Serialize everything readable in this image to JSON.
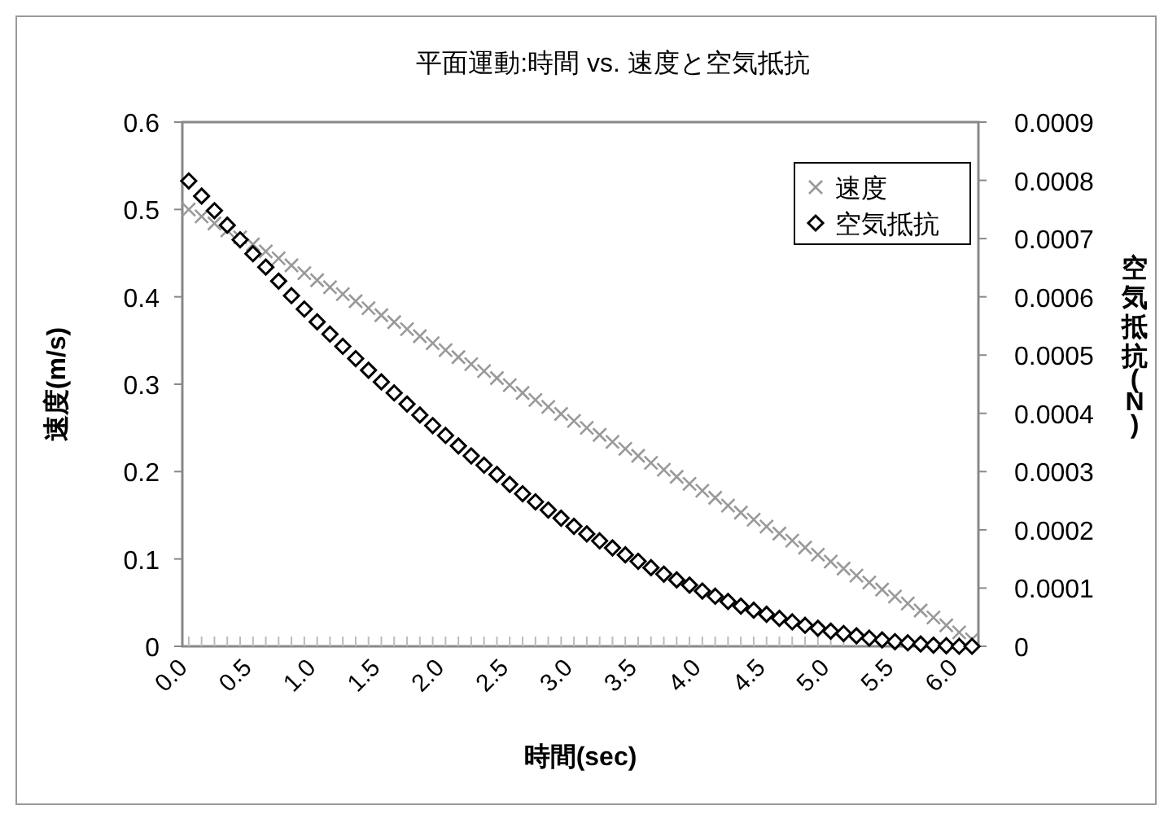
{
  "chart_data": {
    "type": "scatter",
    "title": "平面運動:時間 vs. 速度と空気抵抗",
    "xlabel": "時間(sec)",
    "ylabel": "速度(m/s)",
    "y2label": "空気抵抗(N)",
    "x": [
      0,
      0.1,
      0.2,
      0.3,
      0.4,
      0.5,
      0.6,
      0.7,
      0.8,
      0.9,
      1.0,
      1.1,
      1.2,
      1.3,
      1.4,
      1.5,
      1.6,
      1.7,
      1.8,
      1.9,
      2.0,
      2.1,
      2.2,
      2.3,
      2.4,
      2.5,
      2.6,
      2.7,
      2.8,
      2.9,
      3.0,
      3.1,
      3.2,
      3.3,
      3.4,
      3.5,
      3.6,
      3.7,
      3.8,
      3.9,
      4.0,
      4.1,
      4.2,
      4.3,
      4.4,
      4.5,
      4.6,
      4.7,
      4.8,
      4.9,
      5.0,
      5.1,
      5.2,
      5.3,
      5.4,
      5.5,
      5.6,
      5.7,
      5.8,
      5.9,
      6.0,
      6.1
    ],
    "xlim": [
      -0.05,
      6.15
    ],
    "xticks": [
      {
        "value": 0,
        "label": "0.0"
      },
      {
        "value": 0.1,
        "label": null
      },
      {
        "value": 0.2,
        "label": null
      },
      {
        "value": 0.3,
        "label": null
      },
      {
        "value": 0.4,
        "label": null
      },
      {
        "value": 0.5,
        "label": "0.5"
      },
      {
        "value": 0.6,
        "label": null
      },
      {
        "value": 0.7,
        "label": null
      },
      {
        "value": 0.8,
        "label": null
      },
      {
        "value": 0.9,
        "label": null
      },
      {
        "value": 1.0,
        "label": "1.0"
      },
      {
        "value": 1.1,
        "label": null
      },
      {
        "value": 1.2,
        "label": null
      },
      {
        "value": 1.3,
        "label": null
      },
      {
        "value": 1.4,
        "label": null
      },
      {
        "value": 1.5,
        "label": "1.5"
      },
      {
        "value": 1.6,
        "label": null
      },
      {
        "value": 1.7,
        "label": null
      },
      {
        "value": 1.8,
        "label": null
      },
      {
        "value": 1.9,
        "label": null
      },
      {
        "value": 2.0,
        "label": "2.0"
      },
      {
        "value": 2.1,
        "label": null
      },
      {
        "value": 2.2,
        "label": null
      },
      {
        "value": 2.3,
        "label": null
      },
      {
        "value": 2.4,
        "label": null
      },
      {
        "value": 2.5,
        "label": "2.5"
      },
      {
        "value": 2.6,
        "label": null
      },
      {
        "value": 2.7,
        "label": null
      },
      {
        "value": 2.8,
        "label": null
      },
      {
        "value": 2.9,
        "label": null
      },
      {
        "value": 3.0,
        "label": "3.0"
      },
      {
        "value": 3.1,
        "label": null
      },
      {
        "value": 3.2,
        "label": null
      },
      {
        "value": 3.3,
        "label": null
      },
      {
        "value": 3.4,
        "label": null
      },
      {
        "value": 3.5,
        "label": "3.5"
      },
      {
        "value": 3.6,
        "label": null
      },
      {
        "value": 3.7,
        "label": null
      },
      {
        "value": 3.8,
        "label": null
      },
      {
        "value": 3.9,
        "label": null
      },
      {
        "value": 4.0,
        "label": "4.0"
      },
      {
        "value": 4.1,
        "label": null
      },
      {
        "value": 4.2,
        "label": null
      },
      {
        "value": 4.3,
        "label": null
      },
      {
        "value": 4.4,
        "label": null
      },
      {
        "value": 4.5,
        "label": "4.5"
      },
      {
        "value": 4.6,
        "label": null
      },
      {
        "value": 4.7,
        "label": null
      },
      {
        "value": 4.8,
        "label": null
      },
      {
        "value": 4.9,
        "label": null
      },
      {
        "value": 5.0,
        "label": "5.0"
      },
      {
        "value": 5.1,
        "label": null
      },
      {
        "value": 5.2,
        "label": null
      },
      {
        "value": 5.3,
        "label": null
      },
      {
        "value": 5.4,
        "label": null
      },
      {
        "value": 5.5,
        "label": "5.5"
      },
      {
        "value": 5.6,
        "label": null
      },
      {
        "value": 5.7,
        "label": null
      },
      {
        "value": 5.8,
        "label": null
      },
      {
        "value": 5.9,
        "label": null
      },
      {
        "value": 6.0,
        "label": "6.0"
      },
      {
        "value": 6.1,
        "label": null
      }
    ],
    "ylim": [
      0,
      0.6
    ],
    "yticks": [
      0,
      0.1,
      0.2,
      0.3,
      0.4,
      0.5,
      0.6
    ],
    "y2lim": [
      0,
      0.0009
    ],
    "y2ticks": [
      0,
      0.0001,
      0.0002,
      0.0003,
      0.0004,
      0.0005,
      0.0006,
      0.0007,
      0.0008,
      0.0009
    ],
    "legend": "top right",
    "series": [
      {
        "name": "速度",
        "color": "#999999",
        "marker": "cross",
        "values": [
          0.5,
          0.492,
          0.484,
          0.476,
          0.468,
          0.46,
          0.452,
          0.444,
          0.436,
          0.427,
          0.419,
          0.411,
          0.403,
          0.395,
          0.387,
          0.379,
          0.371,
          0.363,
          0.355,
          0.347,
          0.339,
          0.331,
          0.323,
          0.315,
          0.307,
          0.299,
          0.29,
          0.282,
          0.274,
          0.266,
          0.258,
          0.25,
          0.242,
          0.234,
          0.226,
          0.218,
          0.21,
          0.202,
          0.194,
          0.186,
          0.178,
          0.17,
          0.161,
          0.153,
          0.145,
          0.137,
          0.129,
          0.121,
          0.113,
          0.105,
          0.097,
          0.089,
          0.081,
          0.073,
          0.065,
          0.057,
          0.049,
          0.041,
          0.033,
          0.024,
          0.016,
          0.008
        ]
      },
      {
        "name": "空気抵抗",
        "color": "#000000",
        "marker": "diamond",
        "axis": "y2",
        "values": [
          0.000799,
          0.000773,
          0.000748,
          0.000723,
          0.000698,
          0.000674,
          0.000651,
          0.000627,
          0.000602,
          0.000579,
          0.000557,
          0.000536,
          0.000515,
          0.000494,
          0.000474,
          0.000454,
          0.000435,
          0.000416,
          0.000397,
          0.000379,
          0.000362,
          0.000344,
          0.000327,
          0.000311,
          0.000295,
          0.000278,
          0.000262,
          0.000248,
          0.000234,
          0.00022,
          0.000206,
          0.000193,
          0.000181,
          0.000169,
          0.000157,
          0.000146,
          0.000135,
          0.000124,
          0.000114,
          0.000105,
          9.5e-05,
          8.6e-05,
          7.7e-05,
          6.9e-05,
          6.2e-05,
          5.5e-05,
          4.8e-05,
          4.2e-05,
          3.6e-05,
          3.1e-05,
          2.6e-05,
          2.2e-05,
          1.8e-05,
          1.4e-05,
          1.1e-05,
          8e-06,
          6e-06,
          4e-06,
          2e-06,
          1e-06,
          0.0,
          0.0
        ]
      }
    ]
  }
}
